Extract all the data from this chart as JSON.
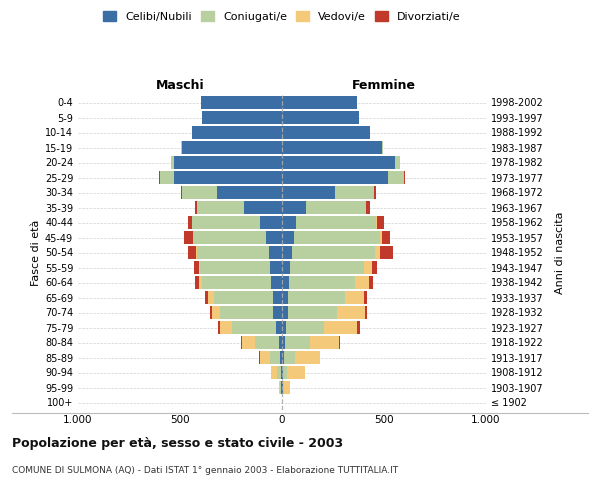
{
  "age_groups": [
    "100+",
    "95-99",
    "90-94",
    "85-89",
    "80-84",
    "75-79",
    "70-74",
    "65-69",
    "60-64",
    "55-59",
    "50-54",
    "45-49",
    "40-44",
    "35-39",
    "30-34",
    "25-29",
    "20-24",
    "15-19",
    "10-14",
    "5-9",
    "0-4"
  ],
  "birth_years": [
    "≤ 1902",
    "1903-1907",
    "1908-1912",
    "1913-1917",
    "1918-1922",
    "1923-1927",
    "1928-1932",
    "1933-1937",
    "1938-1942",
    "1943-1947",
    "1948-1952",
    "1953-1957",
    "1958-1962",
    "1963-1967",
    "1968-1972",
    "1973-1977",
    "1978-1982",
    "1983-1987",
    "1988-1992",
    "1993-1997",
    "1998-2002"
  ],
  "colors": {
    "celibe": "#3a6ea5",
    "coniugato": "#b8cfa0",
    "vedovo": "#f5c97a",
    "divorziato": "#c0392b"
  },
  "males": {
    "celibe": [
      2,
      3,
      5,
      10,
      15,
      30,
      45,
      45,
      55,
      60,
      65,
      80,
      110,
      185,
      320,
      530,
      530,
      490,
      440,
      390,
      395
    ],
    "coniugato": [
      0,
      5,
      20,
      50,
      115,
      215,
      260,
      290,
      335,
      340,
      350,
      355,
      330,
      230,
      170,
      70,
      15,
      5,
      0,
      0,
      0
    ],
    "vedovo": [
      0,
      5,
      30,
      50,
      65,
      60,
      40,
      30,
      15,
      8,
      5,
      3,
      2,
      1,
      1,
      0,
      0,
      0,
      0,
      0,
      0
    ],
    "divorziato": [
      0,
      0,
      0,
      2,
      5,
      8,
      10,
      10,
      20,
      25,
      40,
      40,
      20,
      10,
      5,
      5,
      0,
      0,
      0,
      0,
      0
    ]
  },
  "females": {
    "celibe": [
      2,
      5,
      5,
      10,
      15,
      20,
      30,
      30,
      35,
      40,
      50,
      60,
      70,
      120,
      260,
      520,
      555,
      490,
      430,
      375,
      370
    ],
    "coniugato": [
      0,
      5,
      20,
      55,
      120,
      185,
      240,
      280,
      325,
      360,
      405,
      420,
      390,
      290,
      190,
      80,
      25,
      5,
      0,
      0,
      0
    ],
    "vedovo": [
      0,
      30,
      90,
      120,
      145,
      165,
      135,
      90,
      65,
      40,
      25,
      10,
      8,
      3,
      2,
      0,
      0,
      0,
      0,
      0,
      0
    ],
    "divorziato": [
      0,
      0,
      0,
      2,
      5,
      10,
      12,
      15,
      20,
      25,
      65,
      40,
      30,
      20,
      10,
      5,
      0,
      0,
      0,
      0,
      0
    ]
  },
  "title": "Popolazione per età, sesso e stato civile - 2003",
  "subtitle": "COMUNE DI SULMONA (AQ) - Dati ISTAT 1° gennaio 2003 - Elaborazione TUTTITALIA.IT",
  "xlabel_left": "Maschi",
  "xlabel_right": "Femmine",
  "ylabel": "Fasce di età",
  "ylabel_right": "Anni di nascita",
  "xlim": 1000,
  "legend_labels": [
    "Celibi/Nubili",
    "Coniugati/e",
    "Vedovi/e",
    "Divorziati/e"
  ],
  "background_color": "#ffffff",
  "grid_color": "#cccccc"
}
